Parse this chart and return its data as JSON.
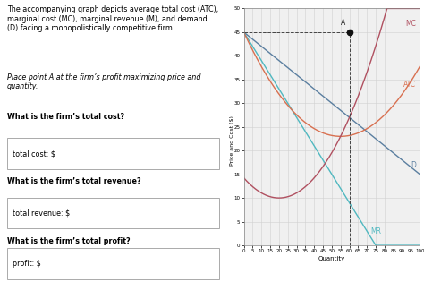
{
  "title_text": "The accompanying graph depicts average total cost (ATC),\nmarginal cost (MC), marginal revenue (M), and demand\n(D) facing a monopolistically competitive firm.",
  "place_text": "Place point A at the firm’s profit maximizing price and\nquantity.",
  "q1": "What is the firm’s total cost?",
  "label1": "total cost: $",
  "q2": "What is the firm’s total revenue?",
  "label2": "total revenue: $",
  "q3": "What is the firm’s total profit?",
  "label3": "profit: $",
  "xmin": 0,
  "xmax": 100,
  "ymin": 0,
  "ymax": 50,
  "xticks": [
    0,
    5,
    10,
    15,
    20,
    25,
    30,
    35,
    40,
    45,
    50,
    55,
    60,
    65,
    70,
    75,
    80,
    85,
    90,
    95,
    100
  ],
  "yticks": [
    0,
    5,
    10,
    15,
    20,
    25,
    30,
    35,
    40,
    45,
    50
  ],
  "xlabel": "Quantity",
  "ylabel": "Price and Cost ($)",
  "d_color": "#5b7fa0",
  "mr_color": "#50b8c0",
  "atc_color": "#d87050",
  "mc_color": "#b05060",
  "point_color": "#111111",
  "point_x": 60,
  "point_y": 45,
  "hline_y": 45,
  "vline_x": 60,
  "label_A": "A",
  "label_MC": "MC",
  "label_ATC": "ATC",
  "label_D": "D",
  "label_MR": "MR",
  "bg_color": "#f0f0f0",
  "grid_color": "#d0d0d0"
}
